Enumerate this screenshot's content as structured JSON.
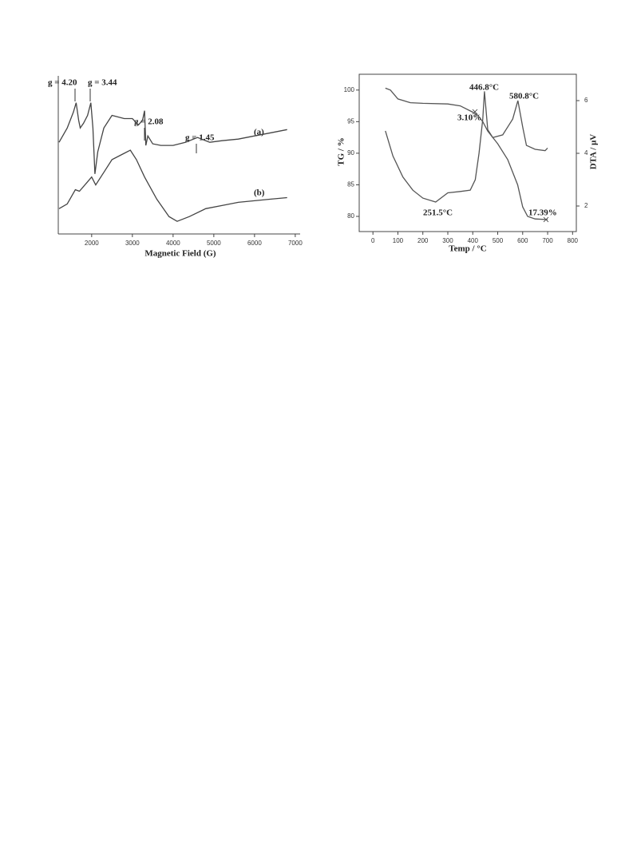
{
  "chart_data": [
    {
      "type": "line",
      "xlabel": "Magnetic Field (G)",
      "xlim": [
        1180,
        7120
      ],
      "xticks": [
        2000,
        3000,
        4000,
        5000,
        6000,
        7000
      ],
      "ylim": [
        0,
        100
      ],
      "annotations": [
        "g = 4.20",
        "g = 3.44",
        "g = 2.08",
        "g = 1.45"
      ],
      "series": [
        {
          "name": "(a)",
          "color": "#444",
          "x": [
            1200,
            1400,
            1550,
            1620,
            1680,
            1720,
            1800,
            1900,
            1980,
            2030,
            2080,
            2150,
            2300,
            2500,
            2800,
            3000,
            3150,
            3250,
            3300,
            3330,
            3380,
            3500,
            3700,
            4000,
            4300,
            4600,
            4900,
            5200,
            5600,
            6000,
            6400,
            6800
          ],
          "values": [
            58,
            67,
            77,
            83,
            72,
            67,
            70,
            75,
            83,
            67,
            38,
            52,
            67,
            75,
            73,
            73,
            69,
            72,
            78,
            56,
            62,
            57,
            56,
            56,
            58,
            61,
            58,
            59,
            60,
            62,
            64,
            66
          ]
        },
        {
          "name": "(b)",
          "color": "#444",
          "x": [
            1200,
            1400,
            1600,
            1700,
            1900,
            2000,
            2100,
            2300,
            2500,
            2800,
            2950,
            3100,
            3300,
            3600,
            3900,
            4100,
            4400,
            4800,
            5200,
            5600,
            6000,
            6400,
            6800
          ],
          "values": [
            16,
            19,
            28,
            27,
            33,
            36,
            31,
            39,
            47,
            51,
            53,
            47,
            36,
            22,
            11,
            8,
            11,
            16,
            18,
            20,
            21,
            22,
            23
          ]
        }
      ]
    },
    {
      "type": "line",
      "xlabel": "Temp / °C",
      "ylabel": "TG / %",
      "y2label": "DTA / μV",
      "xlim": [
        -55,
        815
      ],
      "xticks": [
        0,
        100,
        200,
        300,
        400,
        500,
        600,
        700,
        800
      ],
      "ylim": [
        77.6,
        102.5
      ],
      "yticks": [
        80,
        85,
        90,
        95,
        100
      ],
      "y2lim": [
        1.03,
        7
      ],
      "y2ticks": [
        2,
        4,
        6
      ],
      "annotations": [
        "446.8°C",
        "580.8°C",
        "3.10%",
        "251.5°C",
        "17.39%"
      ],
      "series": [
        {
          "color": "#555",
          "x": [
            50,
            70,
            100,
            150,
            200,
            300,
            350,
            400,
            420,
            440,
            460,
            500,
            540,
            580,
            600,
            620,
            650,
            700
          ],
          "values": [
            100.3,
            100,
            98.6,
            98,
            97.9,
            97.8,
            97.5,
            96.5,
            96,
            95,
            93.5,
            91.5,
            89,
            85,
            81.5,
            80,
            79.6,
            79.5
          ]
        },
        {
          "color": "#555",
          "axis": "y2",
          "x": [
            50,
            80,
            120,
            160,
            200,
            251.5,
            300,
            350,
            390,
            410,
            425,
            440,
            446.8,
            460,
            480,
            520,
            560,
            580.8,
            600,
            615,
            650,
            690,
            700
          ],
          "values": [
            4.85,
            3.9,
            3.1,
            2.6,
            2.3,
            2.15,
            2.5,
            2.55,
            2.6,
            3.0,
            4.0,
            5.3,
            6.35,
            4.9,
            4.6,
            4.7,
            5.3,
            6.0,
            5.0,
            4.3,
            4.15,
            4.1,
            4.2
          ]
        }
      ]
    }
  ]
}
